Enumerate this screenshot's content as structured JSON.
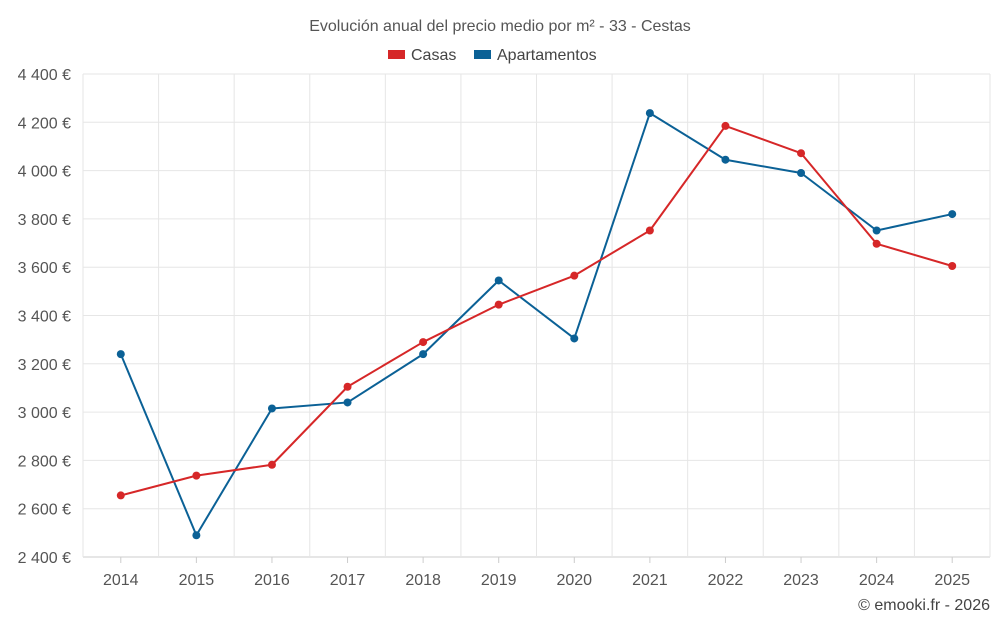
{
  "chart_data": {
    "type": "line",
    "title": "Evolución anual del precio medio por m² - 33 - Cestas",
    "categories": [
      "2014",
      "2015",
      "2016",
      "2017",
      "2018",
      "2019",
      "2020",
      "2021",
      "2022",
      "2023",
      "2024",
      "2025"
    ],
    "series": [
      {
        "name": "Casas",
        "color": "#d62728",
        "values": [
          2655,
          2737,
          2782,
          3105,
          3290,
          3445,
          3565,
          3752,
          4185,
          4072,
          3697,
          3605
        ]
      },
      {
        "name": "Apartamentos",
        "color": "#0b6196",
        "values": [
          3240,
          2490,
          3015,
          3040,
          3240,
          3545,
          3305,
          4238,
          4045,
          3990,
          3752,
          3820
        ]
      }
    ],
    "ylim": [
      2400,
      4400
    ],
    "yticks": [
      2400,
      2600,
      2800,
      3000,
      3200,
      3400,
      3600,
      3800,
      4000,
      4200,
      4400
    ],
    "ytick_labels": [
      "2 400 €",
      "2 600 €",
      "2 800 €",
      "3 000 €",
      "3 200 €",
      "3 400 €",
      "3 600 €",
      "3 800 €",
      "4 000 €",
      "4 200 €",
      "4 400 €"
    ],
    "xlabel": "",
    "ylabel": "",
    "legend": "top-center",
    "grid": true
  },
  "credit": "© emooki.fr - 2026"
}
